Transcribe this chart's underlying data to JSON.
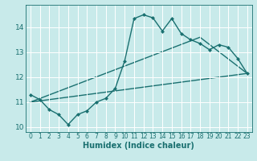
{
  "xlabel": "Humidex (Indice chaleur)",
  "bg_color": "#c8eaea",
  "line_color": "#1a7070",
  "grid_color": "#ffffff",
  "xlim": [
    -0.5,
    23.5
  ],
  "ylim": [
    9.8,
    14.9
  ],
  "yticks": [
    10,
    11,
    12,
    13,
    14
  ],
  "xticks": [
    0,
    1,
    2,
    3,
    4,
    5,
    6,
    7,
    8,
    9,
    10,
    11,
    12,
    13,
    14,
    15,
    16,
    17,
    18,
    19,
    20,
    21,
    22,
    23
  ],
  "series1_x": [
    0,
    1,
    2,
    3,
    4,
    5,
    6,
    7,
    8,
    9,
    10,
    11,
    12,
    13,
    14,
    15,
    16,
    17,
    18,
    19,
    20,
    21,
    22,
    23
  ],
  "series1_y": [
    11.3,
    11.1,
    10.7,
    10.5,
    10.1,
    10.5,
    10.65,
    11.0,
    11.15,
    11.55,
    12.65,
    14.35,
    14.5,
    14.38,
    13.85,
    14.35,
    13.75,
    13.5,
    13.35,
    13.1,
    13.3,
    13.2,
    12.75,
    12.15
  ],
  "series2_x": [
    0,
    23
  ],
  "series2_y": [
    11.0,
    12.15
  ],
  "series3_x": [
    0,
    18,
    23
  ],
  "series3_y": [
    11.0,
    13.6,
    12.15
  ],
  "xlabel_fontsize": 7,
  "tick_fontsize": 5.5,
  "marker_size": 2.5,
  "linewidth": 1.0
}
